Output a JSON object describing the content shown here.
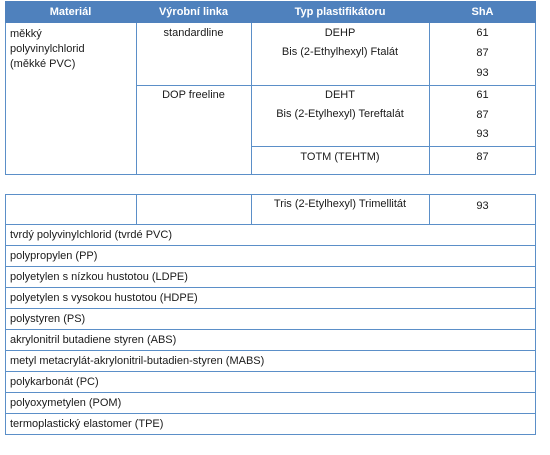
{
  "headers": {
    "material": "Materiál",
    "line": "Výrobní linka",
    "plasticizer": "Typ plastifikátoru",
    "sha": "ShA"
  },
  "soft_pvc": {
    "material_lines": [
      "měkký",
      "polyvinylchlorid",
      "(měkké PVC)"
    ],
    "group1": {
      "line": "standardline",
      "p1": "DEHP",
      "p2": "Bis (2-Ethylhexyl) Ftalát",
      "sha": [
        "61",
        "87",
        "93"
      ]
    },
    "group2": {
      "line": "DOP freeline",
      "p1": "DEHT",
      "p2": "Bis (2-Etylhexyl) Tereftalát",
      "sha": [
        "61",
        "87",
        "93"
      ],
      "p3": "TOTM (TEHTM)",
      "sha3": "87"
    }
  },
  "continued_row": {
    "plasticizer": "Tris (2-Etylhexyl) Trimellitát",
    "sha": "93"
  },
  "materials": [
    "tvrdý polyvinylchlorid (tvrdé PVC)",
    "polypropylen (PP)",
    "polyetylen s nízkou hustotou (LDPE)",
    "polyetylen s vysokou hustotou (HDPE)",
    "polystyren (PS)",
    "akrylonitril butadiene styren (ABS)",
    "metyl metacrylát-akrylonitril-butadien-styren (MABS)",
    "polykarbonát (PC)",
    "polyoxymetylen (POM)",
    "termoplastický elastomer (TPE)"
  ]
}
